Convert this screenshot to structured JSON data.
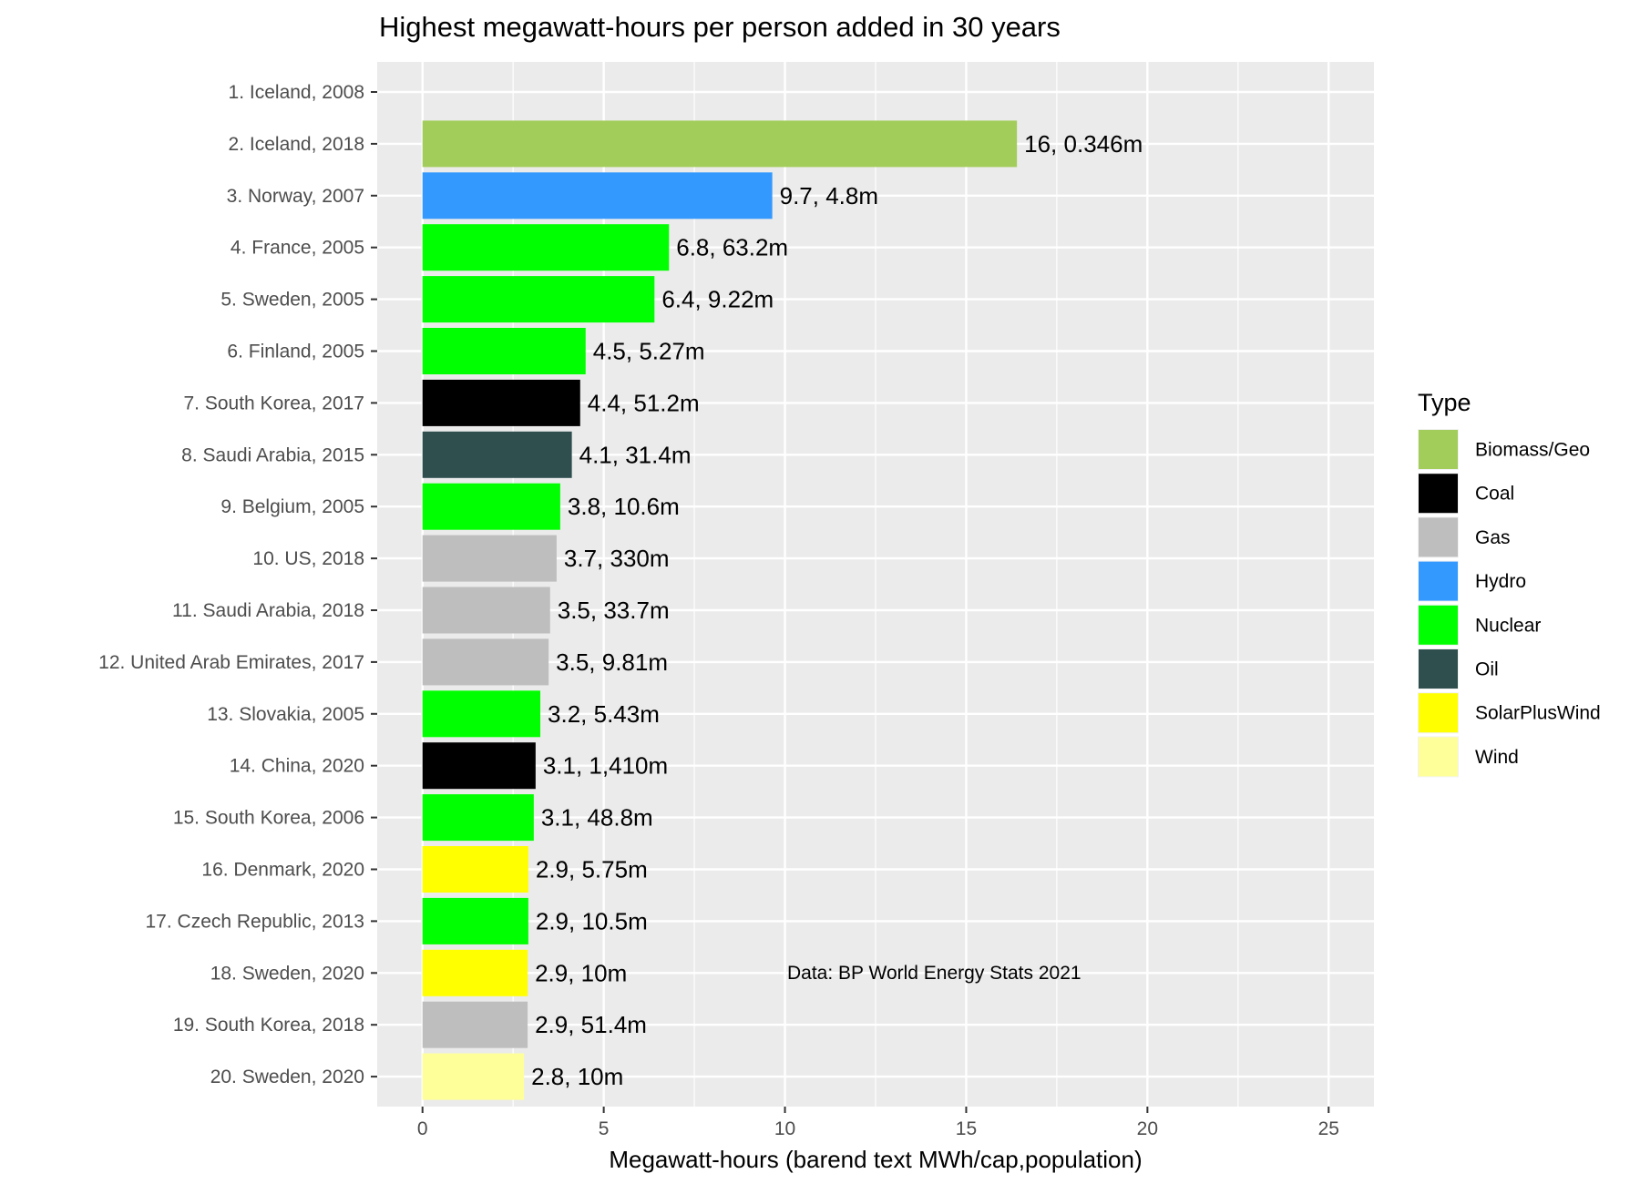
{
  "chart_data": {
    "type": "bar",
    "orientation": "horizontal",
    "title": "Highest megawatt-hours per person added in 30 years",
    "xlabel": "Megawatt-hours (barend text MWh/cap,population)",
    "ylabel": "",
    "xlim": [
      -1.25,
      26.25
    ],
    "x_ticks": [
      0,
      5,
      10,
      15,
      20,
      25
    ],
    "grid": true,
    "legend_placement": "right",
    "legend_title": "Type",
    "legend": [
      {
        "name": "Biomass/Geo",
        "color": "#A2CD5A"
      },
      {
        "name": "Coal",
        "color": "#000000"
      },
      {
        "name": "Gas",
        "color": "#BEBEBE"
      },
      {
        "name": "Hydro",
        "color": "#3399FF"
      },
      {
        "name": "Nuclear",
        "color": "#00FF00"
      },
      {
        "name": "Oil",
        "color": "#2F4F4F"
      },
      {
        "name": "SolarPlusWind",
        "color": "#FFFF00"
      },
      {
        "name": "Wind",
        "color": "#FFFF99"
      }
    ],
    "annotation": "Data: BP World Energy Stats 2021",
    "categories": [
      "1. Iceland, 2008",
      "2. Iceland, 2018",
      "3. Norway, 2007",
      "4. France, 2005",
      "5. Sweden, 2005",
      "6. Finland, 2005",
      "7. South Korea, 2017",
      "8. Saudi Arabia, 2015",
      "9. Belgium, 2005",
      "10. US, 2018",
      "11. Saudi Arabia, 2018",
      "12. United Arab Emirates, 2017",
      "13. Slovakia, 2005",
      "14. China, 2020",
      "15. South Korea, 2006",
      "16. Denmark, 2020",
      "17. Czech Republic, 2013",
      "18. Sweden, 2020",
      "19. South Korea, 2018",
      "20. Sweden, 2020"
    ],
    "bars": [
      {
        "value": null,
        "type": "",
        "label": ""
      },
      {
        "value": 16.4,
        "type": "Biomass/Geo",
        "label": "16, 0.346m"
      },
      {
        "value": 9.65,
        "type": "Hydro",
        "label": "9.7, 4.8m"
      },
      {
        "value": 6.8,
        "type": "Nuclear",
        "label": "6.8, 63.2m"
      },
      {
        "value": 6.4,
        "type": "Nuclear",
        "label": "6.4, 9.22m"
      },
      {
        "value": 4.5,
        "type": "Nuclear",
        "label": "4.5, 5.27m"
      },
      {
        "value": 4.35,
        "type": "Coal",
        "label": "4.4, 51.2m"
      },
      {
        "value": 4.12,
        "type": "Oil",
        "label": "4.1, 31.4m"
      },
      {
        "value": 3.8,
        "type": "Nuclear",
        "label": "3.8, 10.6m"
      },
      {
        "value": 3.7,
        "type": "Gas",
        "label": "3.7, 330m"
      },
      {
        "value": 3.52,
        "type": "Gas",
        "label": "3.5, 33.7m"
      },
      {
        "value": 3.48,
        "type": "Gas",
        "label": "3.5, 9.81m"
      },
      {
        "value": 3.25,
        "type": "Nuclear",
        "label": "3.2, 5.43m"
      },
      {
        "value": 3.12,
        "type": "Coal",
        "label": "3.1, 1,410m"
      },
      {
        "value": 3.07,
        "type": "Nuclear",
        "label": "3.1, 48.8m"
      },
      {
        "value": 2.92,
        "type": "SolarPlusWind",
        "label": "2.9, 5.75m"
      },
      {
        "value": 2.92,
        "type": "Nuclear",
        "label": "2.9, 10.5m"
      },
      {
        "value": 2.9,
        "type": "SolarPlusWind",
        "label": "2.9, 10m"
      },
      {
        "value": 2.9,
        "type": "Gas",
        "label": "2.9, 51.4m"
      },
      {
        "value": 2.8,
        "type": "Wind",
        "label": "2.8, 10m"
      }
    ]
  }
}
